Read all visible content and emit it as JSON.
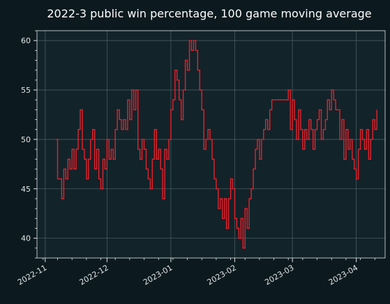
{
  "chart_data": {
    "type": "line",
    "title": "2022-3 public win percentage, 100 game moving average",
    "xlabel": "",
    "ylabel": "",
    "x_range": [
      "2022-10-28",
      "2023-04-15"
    ],
    "ylim": [
      38,
      61
    ],
    "x_ticks": [
      "2022-11",
      "2022-12",
      "2023-01",
      "2023-02",
      "2023-03",
      "2023-04"
    ],
    "y_ticks": [
      40,
      45,
      50,
      55,
      60
    ],
    "grid": true,
    "legend": "none",
    "colors": {
      "background": "#0c1a1f",
      "plot_area": "#13232a",
      "line": "#e8212a",
      "grid": "#4a5a60",
      "text": "#e0e6e8"
    },
    "series": [
      {
        "points": [
          [
            "2022-11-06",
            50
          ],
          [
            "2022-11-07",
            46
          ],
          [
            "2022-11-08",
            46
          ],
          [
            "2022-11-09",
            44
          ],
          [
            "2022-11-10",
            47
          ],
          [
            "2022-11-11",
            46
          ],
          [
            "2022-11-12",
            48
          ],
          [
            "2022-11-13",
            47
          ],
          [
            "2022-11-14",
            49
          ],
          [
            "2022-11-15",
            47
          ],
          [
            "2022-11-16",
            49
          ],
          [
            "2022-11-17",
            51
          ],
          [
            "2022-11-18",
            53
          ],
          [
            "2022-11-19",
            49
          ],
          [
            "2022-11-20",
            48
          ],
          [
            "2022-11-21",
            46
          ],
          [
            "2022-11-22",
            48
          ],
          [
            "2022-11-23",
            50
          ],
          [
            "2022-11-24",
            51
          ],
          [
            "2022-11-25",
            47
          ],
          [
            "2022-11-26",
            49
          ],
          [
            "2022-11-27",
            46
          ],
          [
            "2022-11-28",
            45
          ],
          [
            "2022-11-29",
            48
          ],
          [
            "2022-11-30",
            47
          ],
          [
            "2022-12-01",
            50
          ],
          [
            "2022-12-02",
            48
          ],
          [
            "2022-12-03",
            49
          ],
          [
            "2022-12-04",
            48
          ],
          [
            "2022-12-05",
            51
          ],
          [
            "2022-12-06",
            53
          ],
          [
            "2022-12-07",
            52
          ],
          [
            "2022-12-08",
            51
          ],
          [
            "2022-12-09",
            52
          ],
          [
            "2022-12-10",
            51
          ],
          [
            "2022-12-11",
            54
          ],
          [
            "2022-12-12",
            52
          ],
          [
            "2022-12-13",
            55
          ],
          [
            "2022-12-14",
            53
          ],
          [
            "2022-12-15",
            55
          ],
          [
            "2022-12-16",
            49
          ],
          [
            "2022-12-17",
            48
          ],
          [
            "2022-12-18",
            50
          ],
          [
            "2022-12-19",
            49
          ],
          [
            "2022-12-20",
            47
          ],
          [
            "2022-12-21",
            46
          ],
          [
            "2022-12-22",
            45
          ],
          [
            "2022-12-23",
            48
          ],
          [
            "2022-12-24",
            51
          ],
          [
            "2022-12-25",
            48
          ],
          [
            "2022-12-26",
            49
          ],
          [
            "2022-12-27",
            47
          ],
          [
            "2022-12-28",
            44
          ],
          [
            "2022-12-29",
            49
          ],
          [
            "2022-12-30",
            48
          ],
          [
            "2022-12-31",
            50
          ],
          [
            "2023-01-01",
            53
          ],
          [
            "2023-01-02",
            54
          ],
          [
            "2023-01-03",
            57
          ],
          [
            "2023-01-04",
            56
          ],
          [
            "2023-01-05",
            54
          ],
          [
            "2023-01-06",
            52
          ],
          [
            "2023-01-07",
            55
          ],
          [
            "2023-01-08",
            58
          ],
          [
            "2023-01-09",
            57
          ],
          [
            "2023-01-10",
            60
          ],
          [
            "2023-01-11",
            59
          ],
          [
            "2023-01-12",
            60
          ],
          [
            "2023-01-13",
            59
          ],
          [
            "2023-01-14",
            57
          ],
          [
            "2023-01-15",
            55
          ],
          [
            "2023-01-16",
            53
          ],
          [
            "2023-01-17",
            49
          ],
          [
            "2023-01-18",
            50
          ],
          [
            "2023-01-19",
            51
          ],
          [
            "2023-01-20",
            50
          ],
          [
            "2023-01-21",
            48
          ],
          [
            "2023-01-22",
            46
          ],
          [
            "2023-01-23",
            45
          ],
          [
            "2023-01-24",
            43
          ],
          [
            "2023-01-25",
            44
          ],
          [
            "2023-01-26",
            42
          ],
          [
            "2023-01-27",
            44
          ],
          [
            "2023-01-28",
            41
          ],
          [
            "2023-01-29",
            44
          ],
          [
            "2023-01-30",
            46
          ],
          [
            "2023-01-31",
            45
          ],
          [
            "2023-02-01",
            42
          ],
          [
            "2023-02-02",
            41
          ],
          [
            "2023-02-03",
            40
          ],
          [
            "2023-02-04",
            42
          ],
          [
            "2023-02-05",
            39
          ],
          [
            "2023-02-06",
            43
          ],
          [
            "2023-02-07",
            41
          ],
          [
            "2023-02-08",
            44
          ],
          [
            "2023-02-09",
            45
          ],
          [
            "2023-02-10",
            47
          ],
          [
            "2023-02-11",
            49
          ],
          [
            "2023-02-12",
            50
          ],
          [
            "2023-02-13",
            48
          ],
          [
            "2023-02-14",
            50
          ],
          [
            "2023-02-15",
            51
          ],
          [
            "2023-02-16",
            52
          ],
          [
            "2023-02-17",
            51
          ],
          [
            "2023-02-18",
            53
          ],
          [
            "2023-02-19",
            54
          ],
          [
            "2023-02-20",
            54
          ],
          [
            "2023-02-21",
            54
          ],
          [
            "2023-02-22",
            54
          ],
          [
            "2023-02-23",
            54
          ],
          [
            "2023-02-24",
            54
          ],
          [
            "2023-02-25",
            54
          ],
          [
            "2023-02-26",
            54
          ],
          [
            "2023-02-27",
            55
          ],
          [
            "2023-02-28",
            51
          ],
          [
            "2023-03-01",
            54
          ],
          [
            "2023-03-02",
            52
          ],
          [
            "2023-03-03",
            50
          ],
          [
            "2023-03-04",
            53
          ],
          [
            "2023-03-05",
            51
          ],
          [
            "2023-03-06",
            49
          ],
          [
            "2023-03-07",
            51
          ],
          [
            "2023-03-08",
            50
          ],
          [
            "2023-03-09",
            52
          ],
          [
            "2023-03-10",
            51
          ],
          [
            "2023-03-11",
            49
          ],
          [
            "2023-03-12",
            51
          ],
          [
            "2023-03-13",
            52
          ],
          [
            "2023-03-14",
            53
          ],
          [
            "2023-03-15",
            50
          ],
          [
            "2023-03-16",
            51
          ],
          [
            "2023-03-17",
            52
          ],
          [
            "2023-03-18",
            54
          ],
          [
            "2023-03-19",
            53
          ],
          [
            "2023-03-20",
            55
          ],
          [
            "2023-03-21",
            54
          ],
          [
            "2023-03-22",
            53
          ],
          [
            "2023-03-23",
            53
          ],
          [
            "2023-03-24",
            50
          ],
          [
            "2023-03-25",
            52
          ],
          [
            "2023-03-26",
            48
          ],
          [
            "2023-03-27",
            51
          ],
          [
            "2023-03-28",
            49
          ],
          [
            "2023-03-29",
            50
          ],
          [
            "2023-03-30",
            48
          ],
          [
            "2023-03-31",
            47
          ],
          [
            "2023-04-01",
            46
          ],
          [
            "2023-04-02",
            49
          ],
          [
            "2023-04-03",
            51
          ],
          [
            "2023-04-04",
            50
          ],
          [
            "2023-04-05",
            49
          ],
          [
            "2023-04-06",
            51
          ],
          [
            "2023-04-07",
            48
          ],
          [
            "2023-04-08",
            50
          ],
          [
            "2023-04-09",
            52
          ],
          [
            "2023-04-10",
            51
          ],
          [
            "2023-04-11",
            53
          ]
        ]
      }
    ]
  }
}
